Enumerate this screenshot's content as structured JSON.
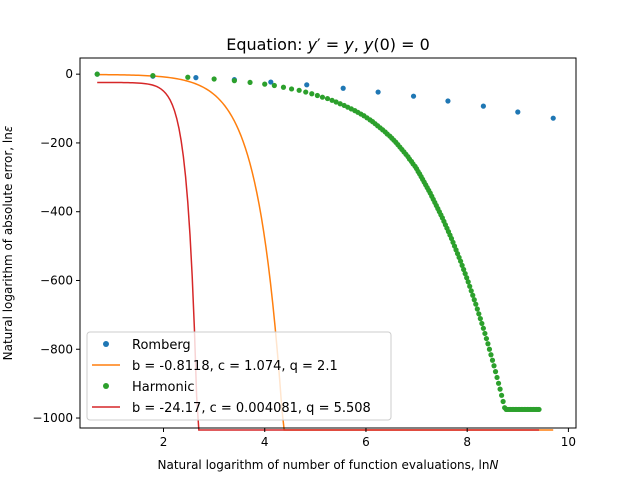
{
  "chart_data": {
    "type": "line",
    "title": "Equation: y′ = y, y(0) = 0",
    "title_parts": {
      "prefix": "Equation: ",
      "y1": "y",
      "prime": "′",
      "eq1": " = ",
      "y2": "y",
      "sep": ", ",
      "y3": "y",
      "arg": "(0) = 0"
    },
    "xlabel": "Natural logarithm of number of function evaluations, ln",
    "xlabel_var": "N",
    "ylabel": "Natural logarithm of absolute error, ln",
    "ylabel_var": "ε",
    "xlim": [
      0.35,
      10.15
    ],
    "ylim": [
      -1029,
      47
    ],
    "xticks": [
      2,
      4,
      6,
      8,
      10
    ],
    "yticks": [
      0,
      -200,
      -400,
      -600,
      -800,
      -1000
    ],
    "xtick_labels": [
      "2",
      "4",
      "6",
      "8",
      "10"
    ],
    "ytick_labels": [
      "0",
      "−200",
      "−400",
      "−600",
      "−800",
      "−1000"
    ],
    "legend_position": "lower-left",
    "series": [
      {
        "name": "Romberg",
        "kind": "scatter",
        "color": "#1f77b4",
        "x": [
          0.69,
          1.79,
          2.64,
          3.4,
          4.12,
          4.83,
          5.55,
          6.24,
          6.94,
          7.62,
          8.32,
          9.0,
          9.7
        ],
        "y": [
          0,
          -6,
          -10,
          -16,
          -23,
          -31,
          -41,
          -52,
          -64,
          -78,
          -93,
          -110,
          -128
        ]
      },
      {
        "name": "b = -0.8118, c = 1.074, q = 2.1",
        "kind": "fit",
        "color": "#ff7f0e",
        "b": -0.8118,
        "c": 1.074,
        "q": 2.1,
        "x_range": [
          0.69,
          9.7
        ]
      },
      {
        "name": "Harmonic",
        "kind": "scatter",
        "color": "#2ca02c",
        "x": [
          0.69,
          1.79,
          2.48,
          3.0,
          3.4,
          3.71,
          4.0,
          4.19,
          4.37,
          4.53,
          4.68,
          4.81,
          4.93,
          5.04,
          5.14,
          5.24,
          5.33,
          5.41,
          5.49,
          5.57,
          5.64,
          5.71,
          5.78,
          5.84,
          5.9,
          5.96,
          6.02,
          6.08,
          6.13,
          6.18,
          6.23,
          6.28,
          6.33,
          6.38,
          6.42,
          6.47,
          6.51,
          6.55,
          6.59,
          6.63,
          6.67,
          6.71,
          6.75,
          6.79,
          6.83,
          6.86,
          6.9,
          6.93,
          6.97,
          7.0,
          7.03,
          7.06,
          7.09,
          7.12,
          7.15,
          7.18,
          7.21,
          7.24,
          7.27,
          7.3,
          7.33,
          7.36,
          7.39,
          7.42,
          7.45,
          7.48,
          7.51,
          7.54,
          7.57,
          7.6,
          7.63,
          7.66,
          7.69,
          7.72,
          7.75,
          7.78,
          7.81,
          7.84,
          7.87,
          7.9,
          7.93,
          7.96,
          7.99,
          8.02,
          8.05,
          8.08,
          8.11,
          8.14,
          8.17,
          8.2,
          8.23,
          8.26,
          8.29,
          8.32,
          8.35,
          8.38,
          8.41,
          8.44,
          8.47,
          8.5,
          8.53,
          8.56,
          8.59,
          8.62,
          8.65,
          8.68,
          8.71,
          8.74,
          8.77,
          8.8,
          8.83,
          8.86,
          8.89,
          8.92,
          8.95,
          8.98,
          9.01,
          9.04,
          9.07,
          9.1,
          9.13,
          9.16,
          9.19,
          9.22,
          9.25,
          9.28,
          9.31,
          9.34,
          9.37,
          9.4,
          9.42
        ],
        "y": [
          0,
          -4,
          -9,
          -14,
          -19,
          -24,
          -29,
          -33,
          -38,
          -43,
          -47,
          -52,
          -57,
          -62,
          -67,
          -71,
          -76,
          -81,
          -86,
          -91,
          -96,
          -101,
          -106,
          -111,
          -116,
          -121,
          -127,
          -133,
          -138,
          -144,
          -150,
          -156,
          -162,
          -168,
          -174,
          -180,
          -186,
          -192,
          -198,
          -205,
          -212,
          -219,
          -226,
          -233,
          -240,
          -247,
          -254,
          -261,
          -268,
          -275,
          -283,
          -290,
          -298,
          -306,
          -314,
          -322,
          -330,
          -338,
          -346,
          -355,
          -364,
          -373,
          -382,
          -391,
          -400,
          -409,
          -418,
          -428,
          -438,
          -448,
          -458,
          -468,
          -478,
          -489,
          -500,
          -511,
          -522,
          -533,
          -544,
          -556,
          -568,
          -580,
          -592,
          -604,
          -617,
          -630,
          -643,
          -656,
          -669,
          -683,
          -697,
          -711,
          -725,
          -739,
          -754,
          -769,
          -784,
          -800,
          -816,
          -832,
          -848,
          -865,
          -882,
          -899,
          -916,
          -934,
          -952,
          -970,
          -975,
          -975,
          -975,
          -975,
          -975,
          -975,
          -975,
          -975,
          -975,
          -975,
          -975,
          -975,
          -975,
          -975,
          -975,
          -975,
          -975,
          -975,
          -975,
          -975,
          -975,
          -975,
          -975
        ]
      },
      {
        "name": "b = -24.17, c = 0.004081, q = 5.508",
        "kind": "fit",
        "color": "#d62728",
        "b": -24.17,
        "c": 0.004081,
        "q": 5.508,
        "x_range": [
          0.69,
          9.42
        ]
      }
    ]
  }
}
